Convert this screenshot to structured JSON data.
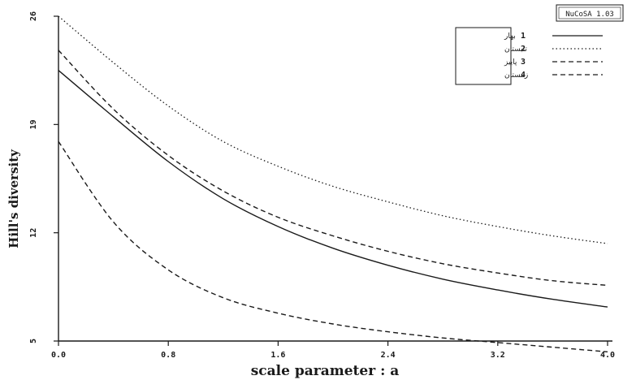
{
  "badge": "NuCoSA 1.03",
  "chart_data": {
    "type": "line",
    "xlabel": "scale parameter :  a",
    "ylabel": "Hill's diversity",
    "xlim": [
      0,
      4
    ],
    "ylim": [
      5,
      26
    ],
    "xticks": [
      "0.0",
      "0.8",
      "1.6",
      "2.4",
      "3.2",
      "4.0"
    ],
    "xtick_values": [
      0,
      0.8,
      1.6,
      2.4,
      3.2,
      4.0
    ],
    "yticks": [
      "5",
      "12",
      "19",
      "26"
    ],
    "ytick_values": [
      5,
      12,
      19,
      26
    ],
    "x": [
      0,
      0.4,
      0.8,
      1.2,
      1.6,
      2.0,
      2.4,
      2.8,
      3.2,
      3.6,
      4.0
    ],
    "legend_position": "top-right",
    "grid": false,
    "series": [
      {
        "number": "1",
        "name": "بهار",
        "style": "solid",
        "values": [
          22.5,
          19.5,
          16.6,
          14.2,
          12.4,
          11.0,
          9.9,
          9.0,
          8.3,
          7.7,
          7.2
        ]
      },
      {
        "number": "2",
        "name": "تابستان",
        "style": "dotted",
        "values": [
          26.0,
          23.0,
          20.2,
          17.9,
          16.3,
          15.0,
          14.0,
          13.1,
          12.4,
          11.8,
          11.3
        ]
      },
      {
        "number": "3",
        "name": "پاییز",
        "style": "dashed",
        "values": [
          23.8,
          20.0,
          17.0,
          14.7,
          13.0,
          11.8,
          10.8,
          10.0,
          9.4,
          8.9,
          8.6
        ]
      },
      {
        "number": "4",
        "name": "زمستان",
        "style": "dashed",
        "values": [
          17.9,
          12.7,
          9.6,
          7.8,
          6.8,
          6.1,
          5.6,
          5.2,
          4.9,
          4.6,
          4.3
        ]
      }
    ]
  }
}
